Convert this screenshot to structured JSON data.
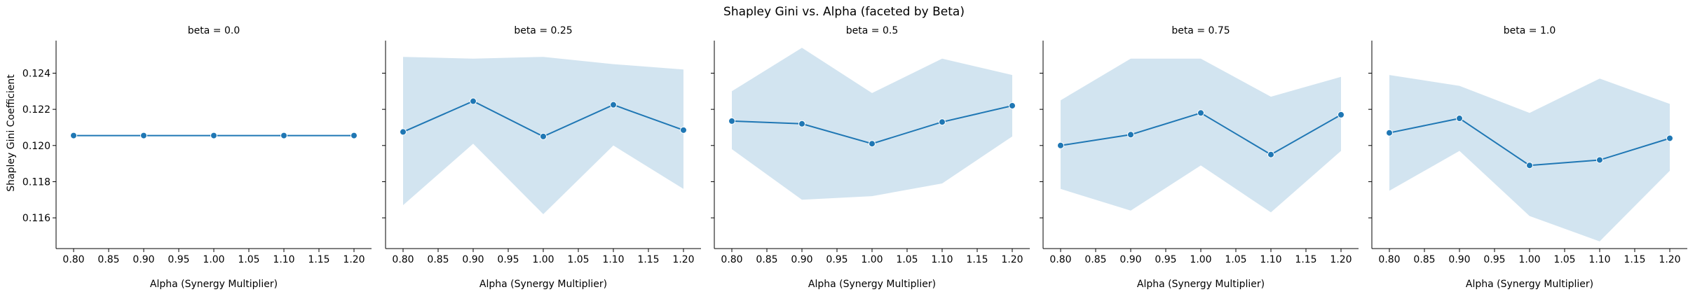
{
  "chart_data": {
    "type": "line",
    "title": "Shapley Gini vs. Alpha (faceted by Beta)",
    "xlabel": "Alpha (Synergy Multiplier)",
    "ylabel": "Shapley Gini Coefficient",
    "xlim": [
      0.775,
      1.225
    ],
    "ylim": [
      0.1143,
      0.1258
    ],
    "xticks": [
      "0.80",
      "0.85",
      "0.90",
      "0.95",
      "1.00",
      "1.05",
      "1.10",
      "1.15",
      "1.20"
    ],
    "yticks": [
      "0.116",
      "0.118",
      "0.120",
      "0.122",
      "0.124"
    ],
    "line_color": "#1f77b4",
    "band_color": "#1f77b4",
    "band_opacity": 0.2,
    "grid": false,
    "sharey": true,
    "facets": [
      {
        "title": "beta = 0.0",
        "x": [
          0.8,
          0.9,
          1.0,
          1.1,
          1.2
        ],
        "y": [
          0.12055,
          0.12055,
          0.12055,
          0.12055,
          0.12055
        ],
        "ci_low": [
          0.12055,
          0.12055,
          0.12055,
          0.12055,
          0.12055
        ],
        "ci_high": [
          0.12055,
          0.12055,
          0.12055,
          0.12055,
          0.12055
        ]
      },
      {
        "title": "beta = 0.25",
        "x": [
          0.8,
          0.9,
          1.0,
          1.1,
          1.2
        ],
        "y": [
          0.12075,
          0.12245,
          0.1205,
          0.12225,
          0.12085
        ],
        "ci_low": [
          0.1167,
          0.1201,
          0.1162,
          0.12,
          0.1176
        ],
        "ci_high": [
          0.1249,
          0.1248,
          0.1249,
          0.1245,
          0.1242
        ]
      },
      {
        "title": "beta = 0.5",
        "x": [
          0.8,
          0.9,
          1.0,
          1.1,
          1.2
        ],
        "y": [
          0.12135,
          0.1212,
          0.1201,
          0.1213,
          0.1222
        ],
        "ci_low": [
          0.1198,
          0.117,
          0.1172,
          0.1179,
          0.1205
        ],
        "ci_high": [
          0.123,
          0.1254,
          0.1229,
          0.1248,
          0.1239
        ]
      },
      {
        "title": "beta = 0.75",
        "x": [
          0.8,
          0.9,
          1.0,
          1.1,
          1.2
        ],
        "y": [
          0.12,
          0.1206,
          0.1218,
          0.1195,
          0.1217
        ],
        "ci_low": [
          0.1176,
          0.1164,
          0.1189,
          0.1163,
          0.1197
        ],
        "ci_high": [
          0.1225,
          0.1248,
          0.1248,
          0.1227,
          0.1238
        ]
      },
      {
        "title": "beta = 1.0",
        "x": [
          0.8,
          0.9,
          1.0,
          1.1,
          1.2
        ],
        "y": [
          0.1207,
          0.1215,
          0.1189,
          0.1192,
          0.1204
        ],
        "ci_low": [
          0.1175,
          0.1197,
          0.1161,
          0.1147,
          0.1186
        ],
        "ci_high": [
          0.1239,
          0.1233,
          0.1218,
          0.1237,
          0.1223
        ]
      }
    ]
  }
}
